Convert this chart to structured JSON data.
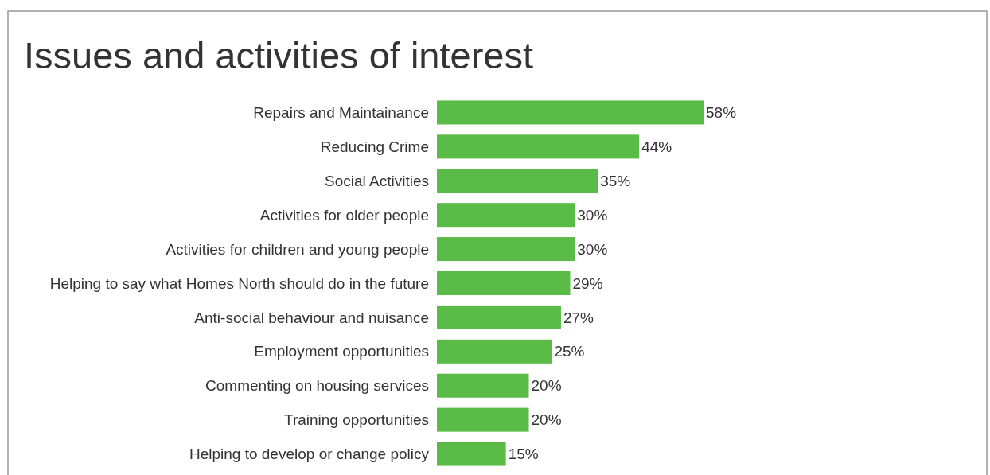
{
  "chart_data": {
    "type": "bar",
    "orientation": "horizontal",
    "title": "Issues and activities of interest",
    "categories": [
      "Repairs and Maintainance",
      "Reducing Crime",
      "Social Activities",
      "Activities for older people",
      "Activities for children and young people",
      "Helping to say what Homes North should do in the future",
      "Anti-social behaviour and nuisance",
      "Employment opportunities",
      "Commenting on housing services",
      "Training opportunities",
      "Helping to develop or change policy"
    ],
    "values": [
      58,
      44,
      35,
      30,
      30,
      29,
      27,
      25,
      20,
      20,
      15
    ],
    "value_labels": [
      "58%",
      "44%",
      "35%",
      "30%",
      "30%",
      "29%",
      "27%",
      "25%",
      "20%",
      "20%",
      "15%"
    ],
    "color": "#5bbb47"
  }
}
